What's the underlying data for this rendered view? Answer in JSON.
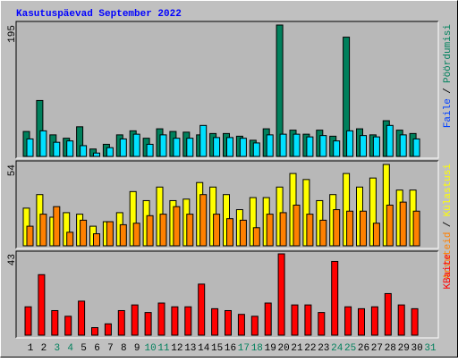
{
  "chart_data": [
    {
      "type": "bar",
      "title": "Kasutuspäevad September 2022",
      "legend_separator": "/",
      "ylim": [
        0,
        195
      ],
      "yticks": [
        195
      ],
      "series": [
        {
          "name": "Pöördumisi",
          "color": "#00805c",
          "values": [
            37,
            83,
            32,
            27,
            44,
            11,
            18,
            32,
            38,
            27,
            41,
            37,
            36,
            32,
            34,
            34,
            30,
            24,
            41,
            195,
            39,
            33,
            39,
            30,
            177,
            41,
            32,
            53,
            39,
            34,
            null
          ]
        },
        {
          "name": "Faile",
          "color": "#0040ff",
          "bar_color": "#00e0ff",
          "values": [
            26,
            38,
            21,
            23,
            16,
            5,
            13,
            26,
            33,
            18,
            32,
            27,
            27,
            46,
            28,
            28,
            27,
            20,
            32,
            33,
            33,
            29,
            31,
            23,
            38,
            31,
            29,
            46,
            32,
            26,
            null
          ]
        }
      ]
    },
    {
      "type": "bar",
      "ylim": [
        0,
        54
      ],
      "yticks": [
        54
      ],
      "series": [
        {
          "name": "Külastusi",
          "color": "#ffff00",
          "values": [
            25,
            34,
            19,
            22,
            21,
            13,
            16,
            22,
            36,
            30,
            39,
            30,
            31,
            42,
            39,
            34,
            24,
            32,
            32,
            39,
            48,
            44,
            30,
            34,
            48,
            39,
            45,
            54,
            37,
            37,
            null
          ]
        },
        {
          "name": "Arvuteid",
          "color": "#ff8000",
          "values": [
            13,
            21,
            26,
            9,
            17,
            8,
            16,
            14,
            15,
            20,
            21,
            26,
            21,
            34,
            21,
            18,
            17,
            12,
            21,
            22,
            27,
            21,
            17,
            24,
            23,
            23,
            15,
            27,
            29,
            23,
            null
          ]
        }
      ]
    },
    {
      "type": "bar",
      "ylim": [
        0,
        43
      ],
      "yticks": [
        43
      ],
      "categories": [
        "1",
        "2",
        "3",
        "4",
        "5",
        "6",
        "7",
        "8",
        "9",
        "10",
        "11",
        "12",
        "13",
        "14",
        "15",
        "16",
        "17",
        "18",
        "19",
        "20",
        "21",
        "22",
        "23",
        "24",
        "25",
        "26",
        "27",
        "28",
        "29",
        "30",
        "31"
      ],
      "category_colors": [
        "#000000",
        "#000000",
        "#00805c",
        "#00805c",
        "#000000",
        "#000000",
        "#000000",
        "#000000",
        "#000000",
        "#00805c",
        "#00805c",
        "#000000",
        "#000000",
        "#000000",
        "#000000",
        "#000000",
        "#00805c",
        "#00805c",
        "#000000",
        "#000000",
        "#000000",
        "#000000",
        "#000000",
        "#00805c",
        "#00805c",
        "#000000",
        "#000000",
        "#000000",
        "#000000",
        "#000000",
        "#00805c"
      ],
      "series": [
        {
          "name": "KBaite",
          "color": "#ff0000",
          "values": [
            15,
            32,
            13,
            10,
            18,
            4,
            6,
            13,
            16,
            12,
            17,
            15,
            15,
            27,
            14,
            13,
            11,
            10,
            17,
            43,
            16,
            16,
            12,
            39,
            15,
            14,
            15,
            22,
            16,
            14,
            null
          ]
        }
      ]
    }
  ]
}
